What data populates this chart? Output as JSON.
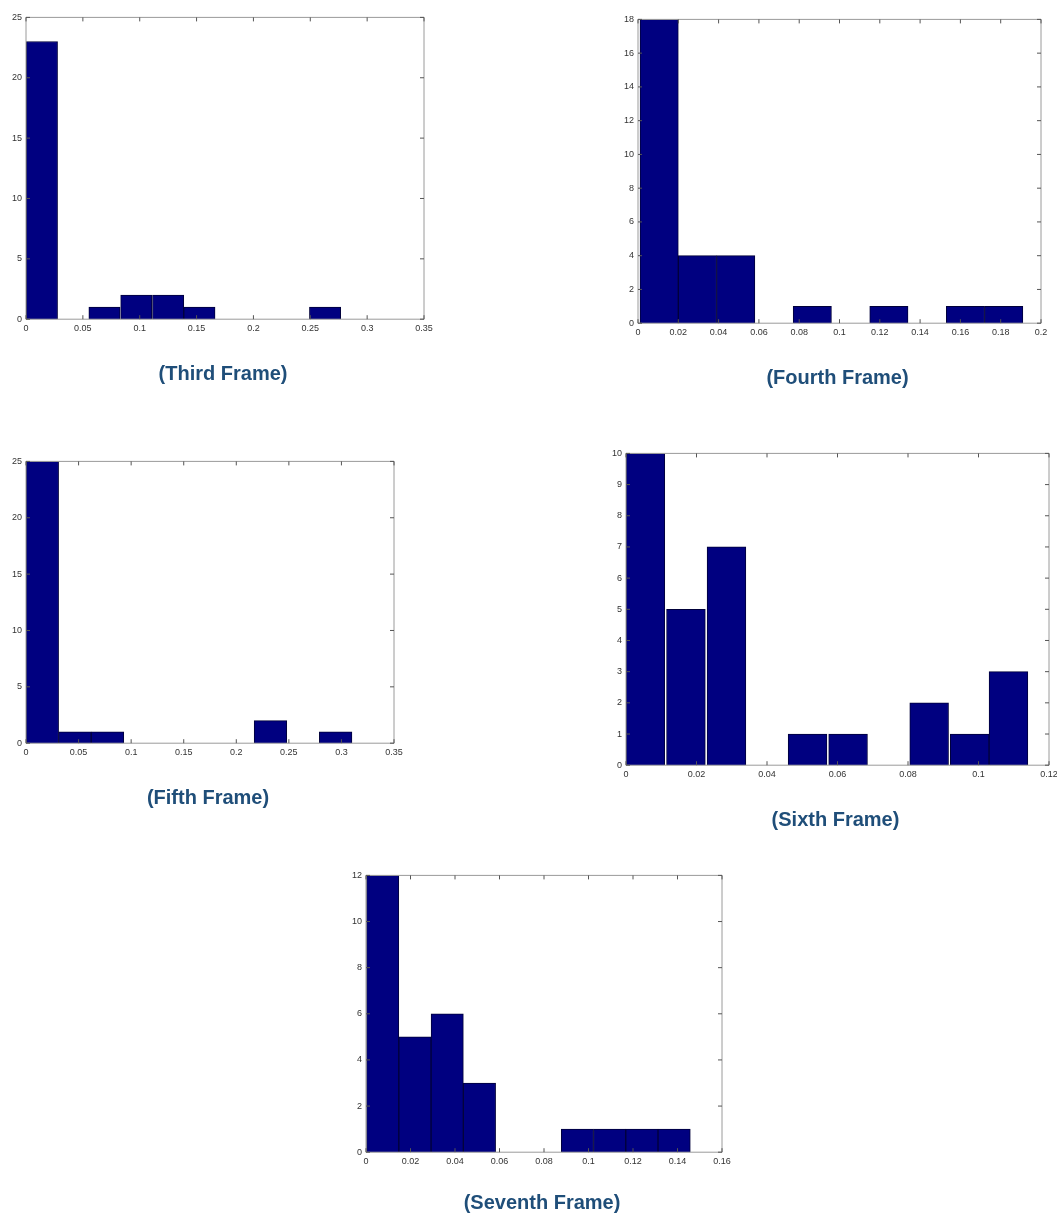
{
  "chart_data": [
    {
      "type": "histogram",
      "title": "(Third Frame)",
      "bins": [
        0,
        0.028,
        0.055,
        0.083,
        0.111,
        0.139,
        0.166,
        0.194,
        0.222,
        0.249,
        0.277
      ],
      "values": [
        23,
        0,
        1,
        2,
        2,
        1,
        0,
        0,
        0,
        1
      ],
      "color": "#000080",
      "xlim": [
        0,
        0.35
      ],
      "xticks": [
        0,
        0.05,
        0.1,
        0.15,
        0.2,
        0.25,
        0.3,
        0.35
      ],
      "ylim": [
        0,
        25
      ],
      "yticks": [
        0,
        5,
        10,
        15,
        20,
        25
      ],
      "grid": false,
      "legend": false
    },
    {
      "type": "histogram",
      "title": "(Fourth Frame)",
      "bins": [
        0.001,
        0.02,
        0.039,
        0.058,
        0.077,
        0.096,
        0.115,
        0.134,
        0.153,
        0.172,
        0.191
      ],
      "values": [
        18,
        4,
        4,
        0,
        1,
        0,
        1,
        0,
        1,
        1
      ],
      "color": "#000080",
      "xlim": [
        0,
        0.2
      ],
      "xticks": [
        0,
        0.02,
        0.04,
        0.06,
        0.08,
        0.1,
        0.12,
        0.14,
        0.16,
        0.18,
        0.2
      ],
      "ylim": [
        0,
        18
      ],
      "yticks": [
        0,
        2,
        4,
        6,
        8,
        10,
        12,
        14,
        16,
        18
      ],
      "grid": false,
      "legend": false
    },
    {
      "type": "histogram",
      "title": "(Fifth Frame)",
      "bins": [
        0,
        0.031,
        0.062,
        0.093,
        0.124,
        0.155,
        0.186,
        0.217,
        0.248,
        0.279,
        0.31
      ],
      "values": [
        25,
        1,
        1,
        0,
        0,
        0,
        0,
        2,
        0,
        1
      ],
      "color": "#000080",
      "xlim": [
        0,
        0.35
      ],
      "xticks": [
        0,
        0.05,
        0.1,
        0.15,
        0.2,
        0.25,
        0.3,
        0.35
      ],
      "ylim": [
        0,
        25
      ],
      "yticks": [
        0,
        5,
        10,
        15,
        20,
        25
      ],
      "grid": false,
      "legend": false
    },
    {
      "type": "histogram",
      "title": "(Sixth Frame)",
      "bins": [
        0,
        0.011,
        0.023,
        0.034,
        0.046,
        0.057,
        0.069,
        0.08,
        0.092,
        0.103,
        0.114
      ],
      "values": [
        10,
        5,
        7,
        0,
        1,
        1,
        0,
        2,
        1,
        3
      ],
      "color": "#000080",
      "xlim": [
        0,
        0.12
      ],
      "xticks": [
        0,
        0.02,
        0.04,
        0.06,
        0.08,
        0.1,
        0.12
      ],
      "ylim": [
        0,
        10
      ],
      "yticks": [
        0,
        1,
        2,
        3,
        4,
        5,
        6,
        7,
        8,
        9,
        10
      ],
      "grid": false,
      "legend": false
    },
    {
      "type": "histogram",
      "title": "(Seventh Frame)",
      "bins": [
        0,
        0.015,
        0.029,
        0.044,
        0.058,
        0.073,
        0.088,
        0.102,
        0.117,
        0.131,
        0.146
      ],
      "values": [
        12,
        5,
        6,
        3,
        0,
        0,
        1,
        1,
        1,
        1
      ],
      "color": "#000080",
      "xlim": [
        0,
        0.16
      ],
      "xticks": [
        0,
        0.02,
        0.04,
        0.06,
        0.08,
        0.1,
        0.12,
        0.14,
        0.16
      ],
      "ylim": [
        0,
        12
      ],
      "yticks": [
        0,
        2,
        4,
        6,
        8,
        10,
        12
      ],
      "grid": false,
      "legend": false
    }
  ]
}
